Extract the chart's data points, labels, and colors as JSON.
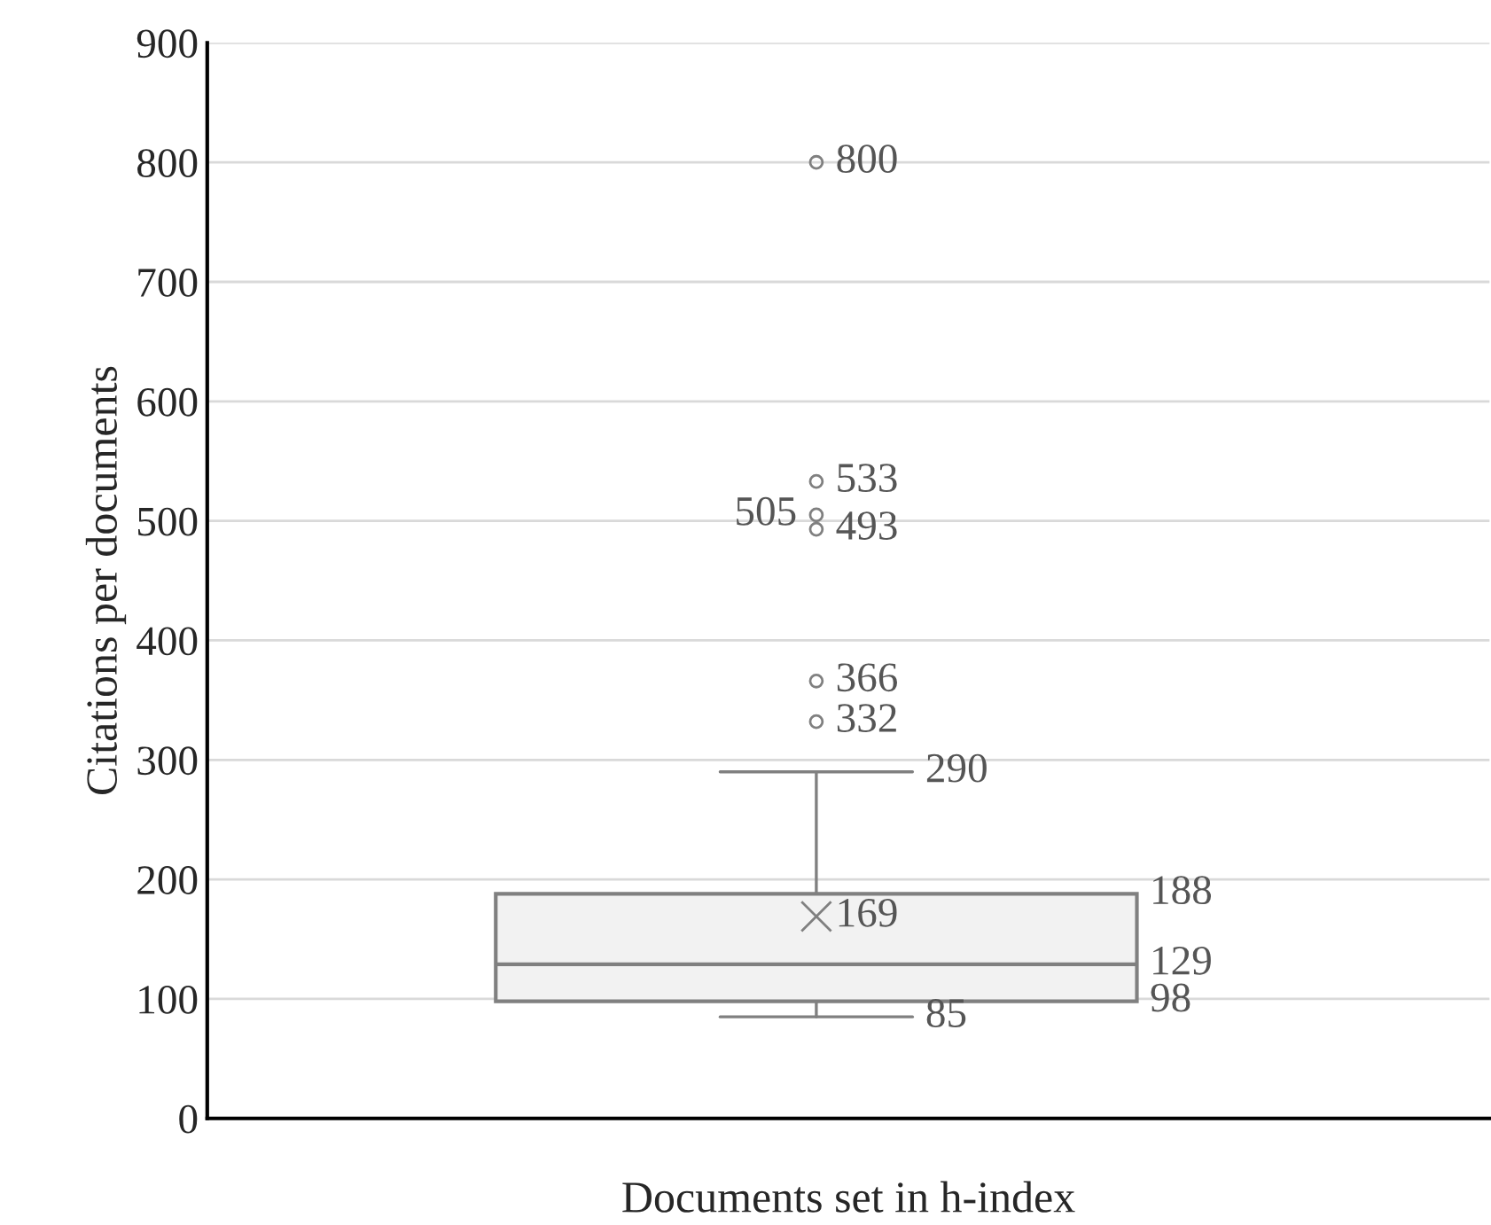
{
  "chart_data": {
    "type": "box",
    "xlabel": "Documents set in h-index",
    "ylabel": "Citations per documents",
    "categories": [
      null
    ],
    "boxes": [
      {
        "low": 85,
        "q1": 98,
        "median": 129,
        "q3": 188,
        "high": 290,
        "mean": 169,
        "outliers": [
          332,
          366,
          493,
          505,
          533,
          800
        ]
      }
    ],
    "color": "#f2f2f2",
    "annotations": [
      "85",
      "98",
      "129",
      "188",
      "290",
      "169",
      "332",
      "366",
      "493",
      "505",
      "533",
      "800"
    ],
    "ylim": [
      0,
      900
    ],
    "yticks": [
      0,
      100,
      200,
      300,
      400,
      500,
      600,
      700,
      800,
      900
    ],
    "grid": "y",
    "marker": "cross"
  }
}
